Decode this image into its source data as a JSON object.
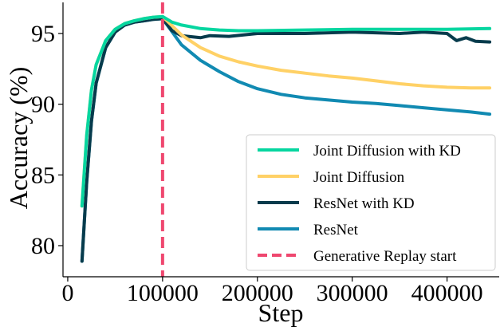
{
  "chart_data": {
    "type": "line",
    "xlabel": "Step",
    "ylabel": "Accuracy (%)",
    "xlim": [
      -5000,
      455000
    ],
    "ylim": [
      77.8,
      97.2
    ],
    "xticks": [
      0,
      100000,
      200000,
      300000,
      400000
    ],
    "xtick_labels": [
      "0",
      "100000",
      "200000",
      "300000",
      "400000"
    ],
    "yticks": [
      80,
      85,
      90,
      95
    ],
    "ytick_labels": [
      "80",
      "85",
      "90",
      "95"
    ],
    "grid": false,
    "legend_position": "bottom-right",
    "vline": {
      "x": 100000,
      "label": "Generative Replay start",
      "color": "#ef476f"
    },
    "series": [
      {
        "name": "Joint Diffusion with KD",
        "color": "#06d6a0",
        "x": [
          15000,
          20000,
          25000,
          30000,
          40000,
          50000,
          60000,
          70000,
          80000,
          90000,
          100000,
          110000,
          120000,
          140000,
          160000,
          180000,
          200000,
          250000,
          300000,
          350000,
          400000,
          445000
        ],
        "y": [
          82.8,
          87.8,
          91.0,
          92.8,
          94.5,
          95.3,
          95.7,
          95.9,
          96.05,
          96.15,
          96.2,
          95.8,
          95.6,
          95.35,
          95.25,
          95.2,
          95.2,
          95.25,
          95.3,
          95.3,
          95.3,
          95.35
        ]
      },
      {
        "name": "Joint Diffusion",
        "color": "#ffd166",
        "x": [
          15000,
          20000,
          25000,
          30000,
          40000,
          50000,
          60000,
          70000,
          80000,
          90000,
          100000,
          120000,
          140000,
          160000,
          180000,
          200000,
          225000,
          250000,
          275000,
          300000,
          325000,
          350000,
          375000,
          400000,
          425000,
          445000
        ],
        "y": [
          82.8,
          87.8,
          91.0,
          92.8,
          94.5,
          95.3,
          95.7,
          95.9,
          96.05,
          96.15,
          96.2,
          94.9,
          94.0,
          93.4,
          93.0,
          92.7,
          92.4,
          92.2,
          92.0,
          91.85,
          91.65,
          91.45,
          91.3,
          91.2,
          91.15,
          91.15
        ]
      },
      {
        "name": "ResNet with KD",
        "color": "#073b4c",
        "x": [
          15000,
          20000,
          25000,
          30000,
          40000,
          50000,
          60000,
          70000,
          80000,
          90000,
          100000,
          110000,
          120000,
          140000,
          150000,
          170000,
          200000,
          250000,
          300000,
          350000,
          375000,
          400000,
          410000,
          420000,
          430000,
          445000
        ],
        "y": [
          78.9,
          84.5,
          88.8,
          91.5,
          94.0,
          95.1,
          95.6,
          95.8,
          95.9,
          96.0,
          96.05,
          95.2,
          94.85,
          94.7,
          94.85,
          94.8,
          95.0,
          95.0,
          95.1,
          95.0,
          95.1,
          95.0,
          94.5,
          94.7,
          94.45,
          94.4
        ]
      },
      {
        "name": "ResNet",
        "color": "#118ab2",
        "x": [
          15000,
          20000,
          25000,
          30000,
          40000,
          50000,
          60000,
          70000,
          80000,
          90000,
          100000,
          120000,
          140000,
          160000,
          180000,
          200000,
          225000,
          250000,
          275000,
          300000,
          325000,
          350000,
          375000,
          400000,
          425000,
          445000
        ],
        "y": [
          78.9,
          84.5,
          88.8,
          91.5,
          94.0,
          95.1,
          95.6,
          95.8,
          95.9,
          96.0,
          96.05,
          94.2,
          93.1,
          92.3,
          91.6,
          91.1,
          90.7,
          90.45,
          90.3,
          90.15,
          90.05,
          89.9,
          89.75,
          89.6,
          89.45,
          89.3
        ]
      }
    ]
  }
}
